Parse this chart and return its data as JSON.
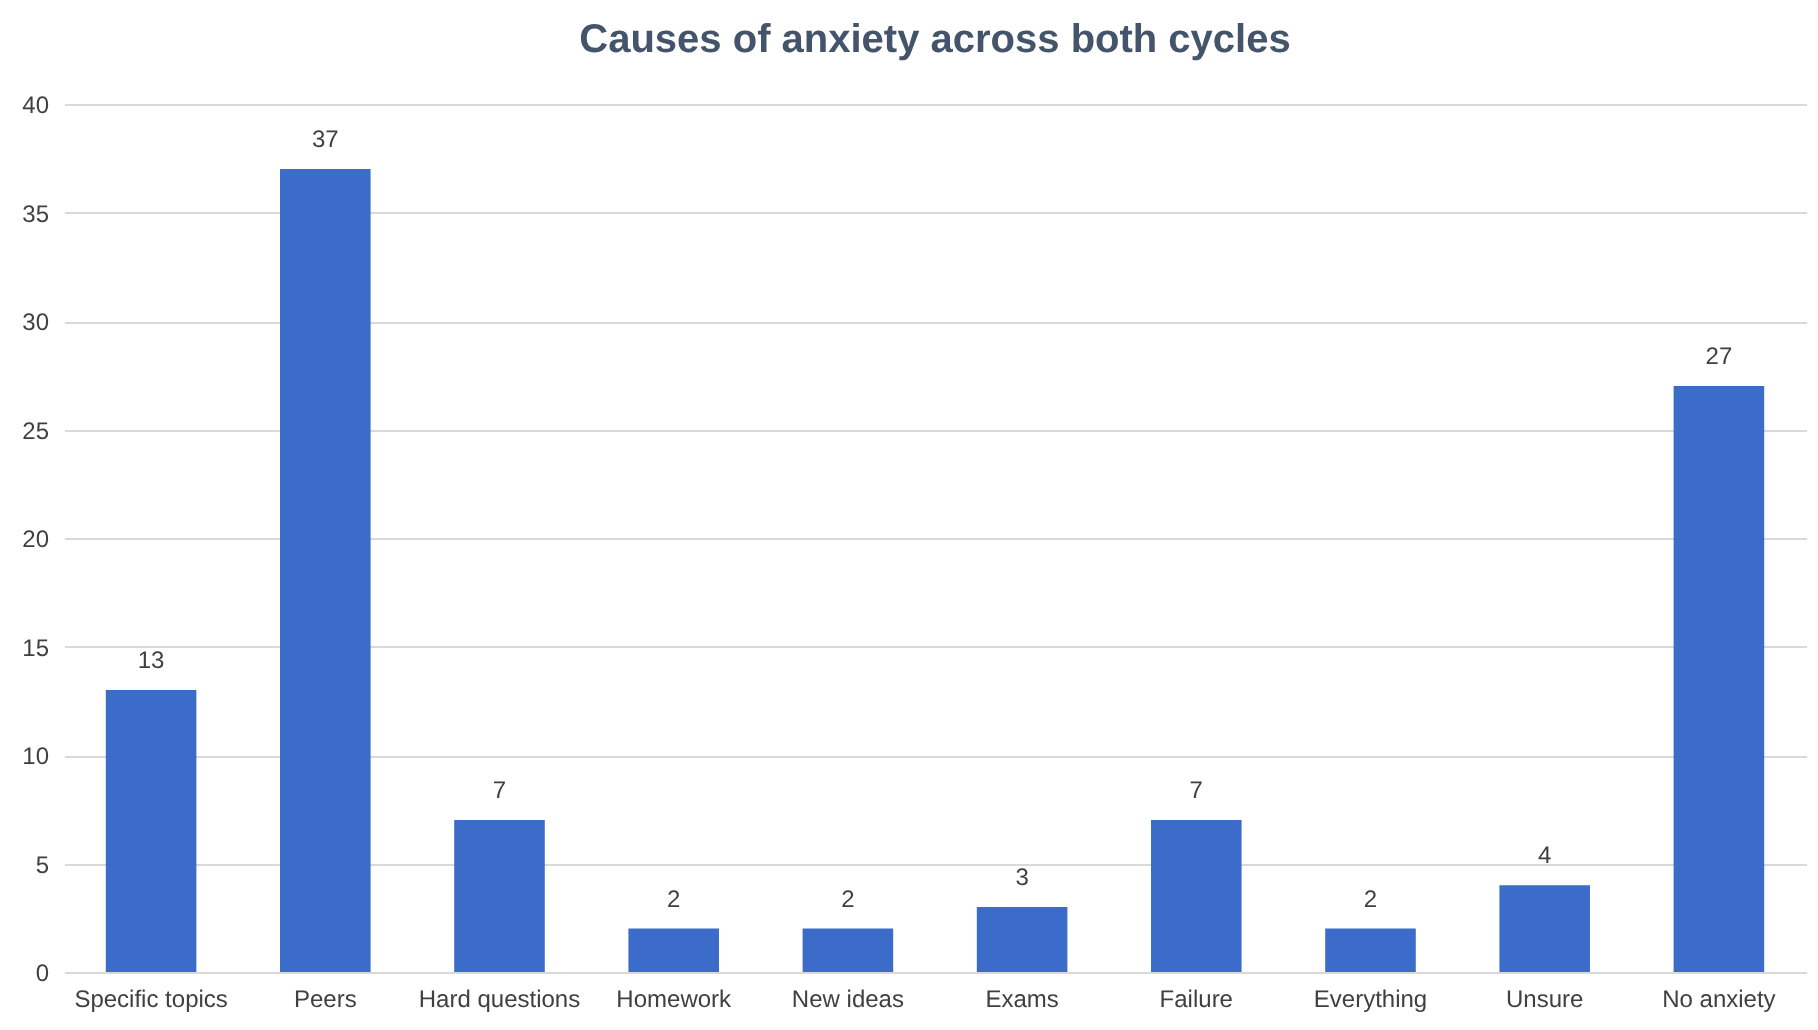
{
  "chart_data": {
    "type": "bar",
    "title": "Causes of anxiety across both cycles",
    "categories": [
      "Specific topics",
      "Peers",
      "Hard questions",
      "Homework",
      "New ideas",
      "Exams",
      "Failure",
      "Everything",
      "Unsure",
      "No anxiety"
    ],
    "values": [
      13,
      37,
      7,
      2,
      2,
      3,
      7,
      2,
      4,
      27
    ],
    "color": "#3c6cc9",
    "ylim": [
      0,
      40
    ],
    "yticks": [
      0,
      5,
      10,
      15,
      20,
      25,
      30,
      35,
      40
    ],
    "grid": "y",
    "data_labels": true
  }
}
